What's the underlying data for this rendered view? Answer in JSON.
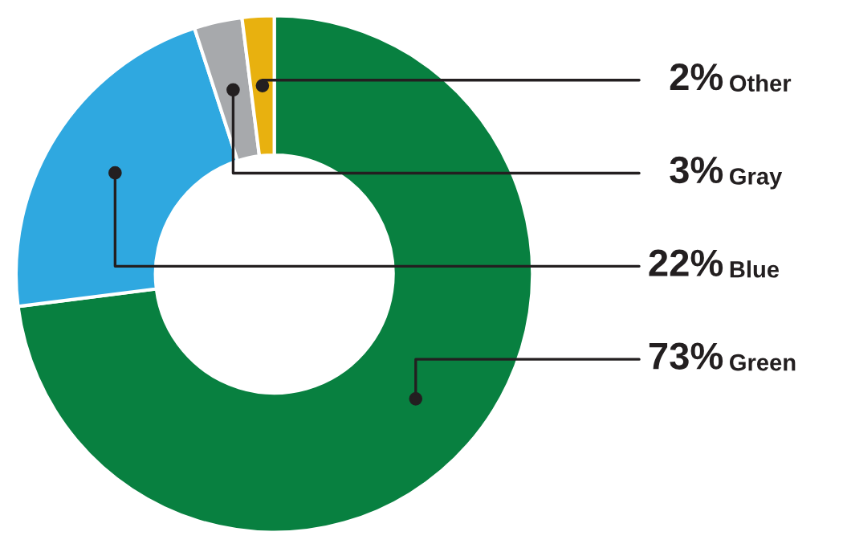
{
  "chart_data": {
    "type": "donut",
    "categories": [
      "Green",
      "Blue",
      "Gray",
      "Other"
    ],
    "values": [
      73,
      22,
      3,
      2
    ],
    "value_labels": [
      "73%",
      "22%",
      "3%",
      "2%"
    ],
    "colors": [
      "#088040",
      "#2fa8e0",
      "#a7a9ac",
      "#e8b10f"
    ],
    "legend": false
  }
}
